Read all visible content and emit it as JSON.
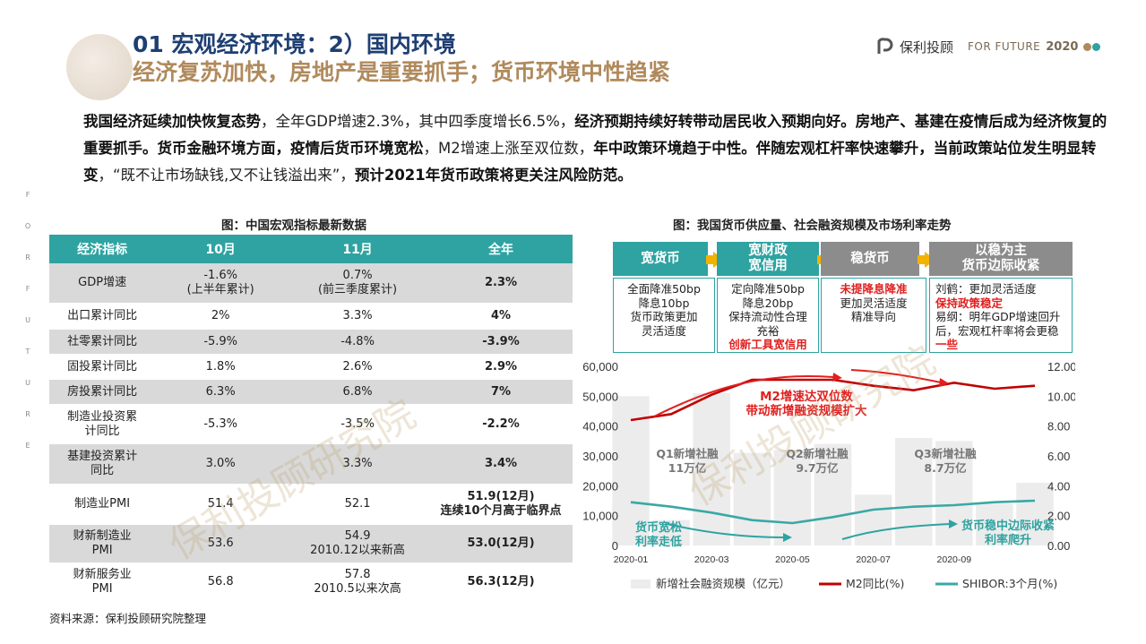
{
  "header": {
    "title": "01 宏观经济环境：2）国内环境",
    "subtitle": "经济复苏加快，房地产是重要抓手；货币环境中性趋紧"
  },
  "logo": {
    "brand": "保利投顾",
    "registered": "®",
    "tagline": "FOR FUTURE",
    "year": "2020"
  },
  "side_letters": [
    "F",
    "O",
    "R",
    "F",
    "U",
    "T",
    "U",
    "R",
    "E"
  ],
  "paragraph": [
    {
      "t": "我国经济延续加快恢复态势",
      "b": true
    },
    {
      "t": "，全年GDP增速2.3%，其中四季度增长6.5%，",
      "b": false
    },
    {
      "t": "经济预期持续好转带动居民收入预期向好。房地产、基建在疫情后成为经济恢复的重要抓手。货币金融环境方面，疫情后货币环境宽松",
      "b": true
    },
    {
      "t": "，M2增速上涨至双位数，",
      "b": false
    },
    {
      "t": "年中政策环境趋于中性。伴随宏观杠杆率快速攀升，当前政策站位发生明显转变",
      "b": true
    },
    {
      "t": "，“既不让市场缺钱,又不让钱溢出来”，",
      "b": false
    },
    {
      "t": "预计2021年货币政策将更关注风险防范。",
      "b": true
    }
  ],
  "table_caption": "图：中国宏观指标最新数据",
  "table": {
    "headers": [
      "经济指标",
      "10月",
      "11月",
      "全年"
    ],
    "rows": [
      [
        "GDP增速",
        "-1.6%\n(上半年累计)",
        "0.7%\n(前三季度累计)",
        "2.3%"
      ],
      [
        "出口累计同比",
        "2%",
        "3.3%",
        "4%"
      ],
      [
        "社零累计同比",
        "-5.9%",
        "-4.8%",
        "-3.9%"
      ],
      [
        "固投累计同比",
        "1.8%",
        "2.6%",
        "2.9%"
      ],
      [
        "房投累计同比",
        "6.3%",
        "6.8%",
        "7%"
      ],
      [
        "制造业投资累\n计同比",
        "-5.3%",
        "-3.5%",
        "-2.2%"
      ],
      [
        "基建投资累计\n同比",
        "3.0%",
        "3.3%",
        "3.4%"
      ],
      [
        "制造业PMI",
        "51.4",
        "52.1",
        "51.9(12月)\n连续10个月高于临界点"
      ],
      [
        "财新制造业\nPMI",
        "53.6",
        "54.9\n2010.12以来新高",
        "53.0(12月)"
      ],
      [
        "财新服务业\nPMI",
        "56.8",
        "57.8\n2010.5以来次高",
        "56.3(12月)"
      ]
    ]
  },
  "source": "资料来源：保利投顾研究院整理",
  "chart_caption": "图：我国货币供应量、社会融资规模及市场利率走势",
  "policy_flow": {
    "stages": [
      "宽货币",
      "宽财政\n宽信用",
      "稳货币",
      "以稳为主\n货币边际收紧"
    ],
    "boxes": [
      [
        {
          "t": "全面降准50bp",
          "r": false
        },
        {
          "t": "降息10bp",
          "r": false
        },
        {
          "t": "货币政策更加",
          "r": false
        },
        {
          "t": "灵活适度",
          "r": false
        }
      ],
      [
        {
          "t": "定向降准50bp",
          "r": false
        },
        {
          "t": "降息20bp",
          "r": false
        },
        {
          "t": "保持流动性合理",
          "r": false
        },
        {
          "t": "充裕",
          "r": false
        },
        {
          "t": "创新工具宽信用",
          "r": true
        }
      ],
      [
        {
          "t": "未提降息降准",
          "r": true
        },
        {
          "t": "更加灵活适度",
          "r": false
        },
        {
          "t": "精准导向",
          "r": false
        }
      ],
      [
        {
          "t": "刘鹤：更加灵活适度",
          "r": false
        },
        {
          "t": "保持政策稳定",
          "r": true
        },
        {
          "t": "易纲：明年GDP增速回升",
          "r": false
        },
        {
          "t": "后，宏观杠杆率将会更稳",
          "r": false
        },
        {
          "t": "一些",
          "r": true
        }
      ]
    ]
  },
  "chart_data": {
    "type": "bar+line",
    "x": [
      "2020-01",
      "2020-02",
      "2020-03",
      "2020-04",
      "2020-05",
      "2020-06",
      "2020-07",
      "2020-08",
      "2020-09",
      "2020-10",
      "2020-11"
    ],
    "x_tick_labels": [
      "2020-01",
      "2020-03",
      "2020-05",
      "2020-07",
      "2020-09"
    ],
    "y_left": {
      "min": 0,
      "max": 60000,
      "ticks": [
        "0",
        "10,000",
        "20,000",
        "30,000",
        "40,000",
        "50,000",
        "60,000"
      ]
    },
    "y_right": {
      "min": 0,
      "max": 12,
      "ticks": [
        "0.00",
        "2.00",
        "4.00",
        "6.00",
        "8.00",
        "10.00",
        "12.00"
      ]
    },
    "series": [
      {
        "name": "新增社会融资规模（亿元）",
        "axis": "left",
        "kind": "bar",
        "color": "#ececec",
        "values": [
          50000,
          8500,
          51000,
          31000,
          32000,
          34000,
          17000,
          36000,
          35000,
          14000,
          21000
        ]
      },
      {
        "name": "M2同比(%)",
        "axis": "right",
        "kind": "line",
        "color": "#c00000",
        "values": [
          8.4,
          8.8,
          10.1,
          11.1,
          11.1,
          11.1,
          10.7,
          10.4,
          10.9,
          10.5,
          10.7
        ]
      },
      {
        "name": "SHIBOR:3个月(%)",
        "axis": "right",
        "kind": "line",
        "color": "#3aa8a5",
        "values": [
          2.9,
          2.6,
          2.2,
          1.7,
          1.5,
          1.9,
          2.4,
          2.6,
          2.7,
          2.9,
          3.0
        ]
      }
    ],
    "annotations": [
      {
        "text": "M2增速达双位数\n带动新增融资规模扩大",
        "color": "#e02020"
      },
      {
        "text": "Q1新增社融\n11万亿",
        "color": "#777"
      },
      {
        "text": "Q2新增社融\n9.7万亿",
        "color": "#777"
      },
      {
        "text": "Q3新增社融\n8.7万亿",
        "color": "#777"
      },
      {
        "text": "货币宽松\n利率走低",
        "color": "#2ea3a1"
      },
      {
        "text": "货币稳中边际收紧\n利率爬升",
        "color": "#2ea3a1"
      }
    ]
  },
  "watermark": "保利投顾研究院",
  "colors": {
    "teal": "#2ea3a1",
    "navy": "#1f3f73",
    "gold": "#b08a5c",
    "accent_red": "#e02020",
    "arrow": "#f2b200"
  }
}
